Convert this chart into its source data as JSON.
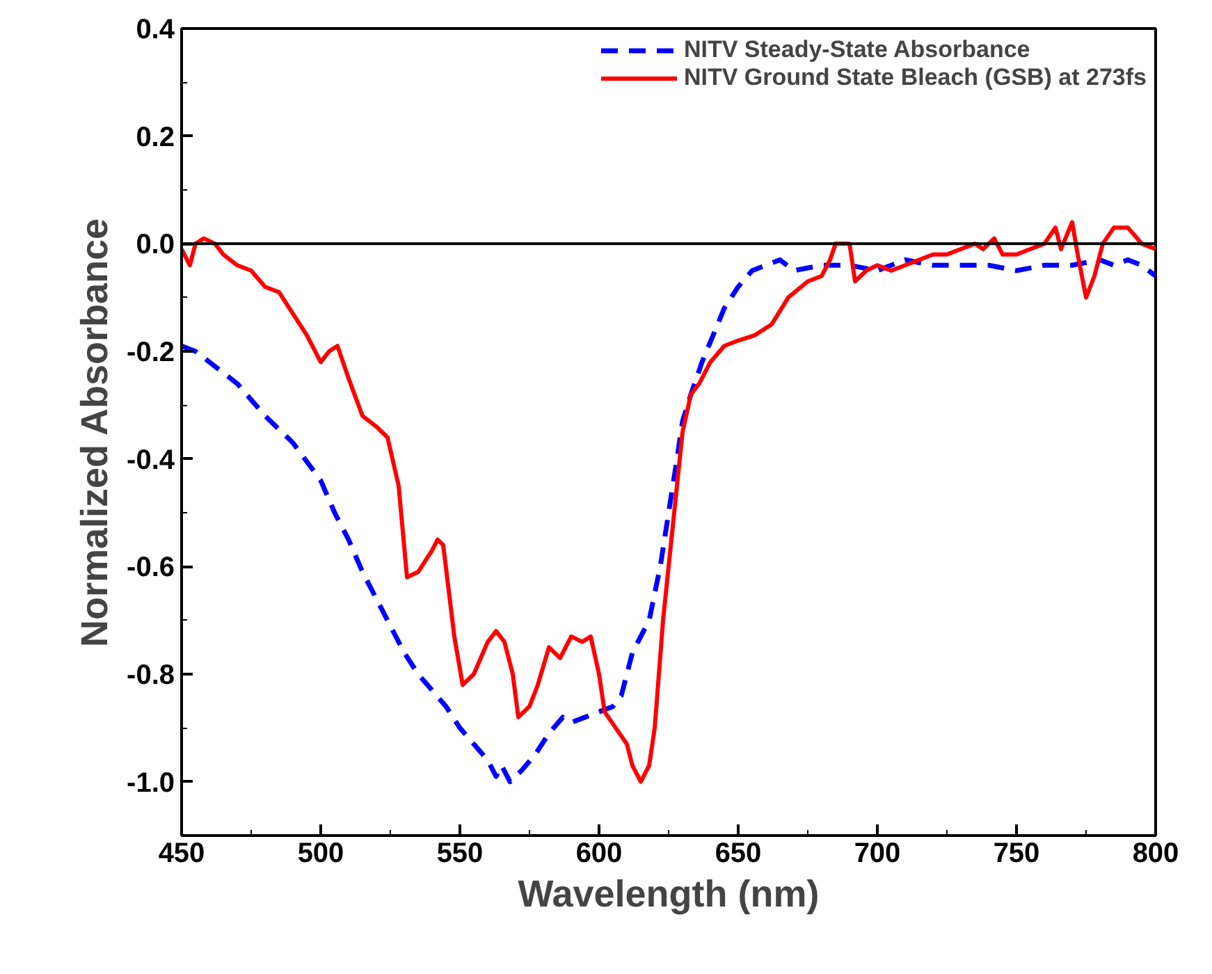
{
  "chart_data": {
    "type": "line",
    "xlabel": "Wavelength (nm)",
    "ylabel": "Normalized Absorbance",
    "xlim": [
      450,
      800
    ],
    "ylim": [
      -1.1,
      0.4
    ],
    "xticks": [
      450,
      500,
      550,
      600,
      650,
      700,
      750,
      800
    ],
    "yticks": [
      {
        "value": -1.0,
        "label": "-1.0"
      },
      {
        "value": -0.8,
        "label": "-0.8"
      },
      {
        "value": -0.6,
        "label": "-0.6"
      },
      {
        "value": -0.4,
        "label": "-0.4"
      },
      {
        "value": -0.2,
        "label": "-0.2"
      },
      {
        "value": 0.0,
        "label": "0.0"
      },
      {
        "value": 0.2,
        "label": "0.2"
      },
      {
        "value": 0.4,
        "label": "0.4"
      }
    ],
    "grid": false,
    "legend": "top right",
    "ref_lines": [
      {
        "axis": "y",
        "value": 0,
        "color": "#000000",
        "line_style": "solid"
      }
    ],
    "series": [
      {
        "name": "NITV Steady-State Absorbance",
        "color": "#0000ff",
        "line_style": "dashed",
        "x": [
          450,
          455,
          460,
          470,
          480,
          490,
          500,
          505,
          510,
          515,
          520,
          525,
          530,
          535,
          540,
          545,
          550,
          555,
          560,
          563,
          565,
          568,
          572,
          577,
          582,
          587,
          590,
          595,
          600,
          605,
          608,
          612,
          618,
          622,
          625,
          628,
          630,
          633,
          637,
          641,
          645,
          650,
          655,
          660,
          665,
          670,
          680,
          690,
          700,
          710,
          720,
          730,
          740,
          750,
          760,
          770,
          780,
          785,
          790,
          795,
          800
        ],
        "values": [
          -0.19,
          -0.2,
          -0.22,
          -0.26,
          -0.32,
          -0.37,
          -0.44,
          -0.5,
          -0.55,
          -0.61,
          -0.66,
          -0.71,
          -0.76,
          -0.8,
          -0.83,
          -0.86,
          -0.9,
          -0.93,
          -0.96,
          -0.99,
          -0.97,
          -1.0,
          -0.98,
          -0.95,
          -0.91,
          -0.88,
          -0.89,
          -0.88,
          -0.87,
          -0.86,
          -0.84,
          -0.76,
          -0.7,
          -0.6,
          -0.5,
          -0.4,
          -0.33,
          -0.28,
          -0.22,
          -0.17,
          -0.12,
          -0.08,
          -0.05,
          -0.04,
          -0.03,
          -0.05,
          -0.04,
          -0.04,
          -0.05,
          -0.03,
          -0.04,
          -0.04,
          -0.04,
          -0.05,
          -0.04,
          -0.04,
          -0.03,
          -0.04,
          -0.03,
          -0.04,
          -0.06
        ]
      },
      {
        "name": "NITV Ground State Bleach (GSB) at 273fs",
        "color": "#ff0000",
        "line_style": "solid",
        "x": [
          450,
          453,
          455,
          458,
          462,
          465,
          470,
          475,
          480,
          485,
          490,
          495,
          500,
          503,
          506,
          510,
          515,
          520,
          524,
          528,
          531,
          535,
          540,
          542,
          544,
          548,
          551,
          555,
          560,
          563,
          566,
          569,
          571,
          575,
          578,
          582,
          586,
          590,
          594,
          597,
          600,
          602,
          606,
          610,
          612,
          615,
          618,
          620,
          623,
          627,
          630,
          633,
          636,
          640,
          645,
          650,
          656,
          662,
          668,
          675,
          680,
          683,
          685,
          690,
          692,
          696,
          700,
          705,
          710,
          715,
          720,
          725,
          730,
          735,
          738,
          742,
          745,
          750,
          755,
          760,
          764,
          766,
          770,
          772,
          775,
          778,
          781,
          785,
          790,
          795,
          800
        ],
        "values": [
          -0.01,
          -0.04,
          0.0,
          0.01,
          0.0,
          -0.02,
          -0.04,
          -0.05,
          -0.08,
          -0.09,
          -0.13,
          -0.17,
          -0.22,
          -0.2,
          -0.19,
          -0.25,
          -0.32,
          -0.34,
          -0.36,
          -0.45,
          -0.62,
          -0.61,
          -0.57,
          -0.55,
          -0.56,
          -0.73,
          -0.82,
          -0.8,
          -0.74,
          -0.72,
          -0.74,
          -0.8,
          -0.88,
          -0.86,
          -0.82,
          -0.75,
          -0.77,
          -0.73,
          -0.74,
          -0.73,
          -0.8,
          -0.87,
          -0.9,
          -0.93,
          -0.97,
          -1.0,
          -0.97,
          -0.9,
          -0.7,
          -0.5,
          -0.35,
          -0.28,
          -0.26,
          -0.22,
          -0.19,
          -0.18,
          -0.17,
          -0.15,
          -0.1,
          -0.07,
          -0.06,
          -0.03,
          0.0,
          0.0,
          -0.07,
          -0.05,
          -0.04,
          -0.05,
          -0.04,
          -0.03,
          -0.02,
          -0.02,
          -0.01,
          0.0,
          -0.01,
          0.01,
          -0.02,
          -0.02,
          -0.01,
          0.0,
          0.03,
          -0.01,
          0.04,
          -0.02,
          -0.1,
          -0.06,
          0.0,
          0.03,
          0.03,
          0.0,
          -0.01
        ]
      }
    ]
  }
}
